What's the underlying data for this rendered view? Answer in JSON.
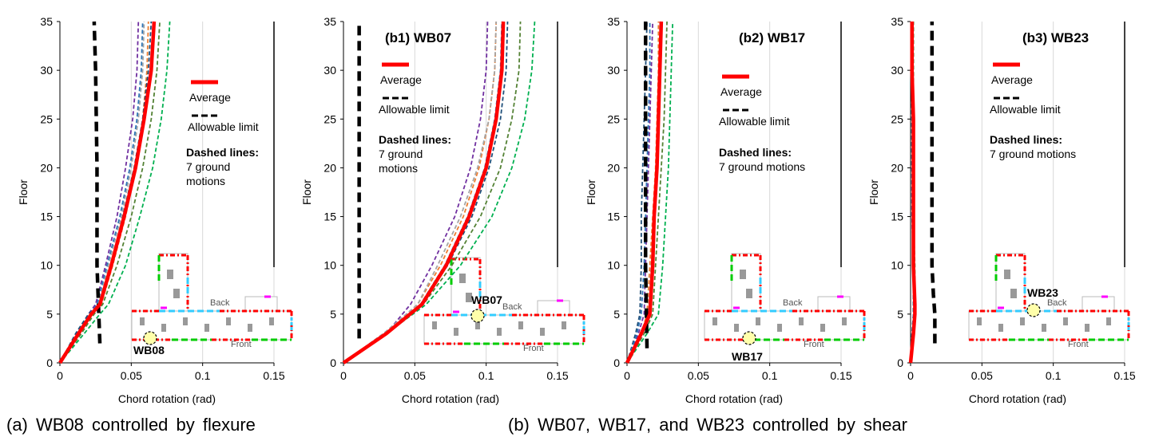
{
  "figure": {
    "caption_a": "(a)  WB08  controlled  by  flexure",
    "caption_b": "(b)  WB07,  WB17,  and  WB23  controlled  by  shear",
    "colors": {
      "average": "#ff0000",
      "limit": "#000000",
      "gm": [
        "#7030a0",
        "#ed7d31",
        "#1f4e79",
        "#548235",
        "#00b050",
        "#a5a5a5",
        "#2e75b6"
      ],
      "grid": "#d9d9d9"
    }
  },
  "chart_data": [
    {
      "type": "line",
      "panel_title": "",
      "wall_label": "WB08",
      "xlabel": "Chord rotation (rad)",
      "ylabel": "Floor",
      "xlim": [
        0,
        0.15
      ],
      "ylim": [
        0,
        35
      ],
      "x_ticks": [
        "0",
        "0.05",
        "0.1",
        "0.15"
      ],
      "y_ticks": [
        "0",
        "5",
        "10",
        "15",
        "20",
        "25",
        "30",
        "35"
      ],
      "grid": "vertical",
      "legend": {
        "average": "Average",
        "limit": "Allowable limit",
        "note_title": "Dashed lines:",
        "note_body": [
          "7 ground",
          "motions"
        ]
      },
      "floors": [
        0,
        3,
        5,
        6,
        10,
        15,
        20,
        25,
        30,
        35
      ],
      "average": [
        0,
        0.013,
        0.022,
        0.028,
        0.036,
        0.045,
        0.053,
        0.059,
        0.064,
        0.066
      ],
      "allowable_limit": [
        [
          0.028,
          2
        ],
        [
          0.026,
          10
        ],
        [
          0.026,
          20
        ],
        [
          0.025,
          30
        ],
        [
          0.024,
          35
        ]
      ],
      "series": [
        {
          "values": [
            0,
            0.012,
            0.02,
            0.025,
            0.032,
            0.04,
            0.046,
            0.051,
            0.054,
            0.055
          ]
        },
        {
          "values": [
            0,
            0.014,
            0.023,
            0.029,
            0.037,
            0.046,
            0.053,
            0.058,
            0.061,
            0.062
          ]
        },
        {
          "values": [
            0,
            0.011,
            0.02,
            0.027,
            0.036,
            0.044,
            0.052,
            0.058,
            0.062,
            0.064
          ]
        },
        {
          "values": [
            0,
            0.015,
            0.024,
            0.03,
            0.04,
            0.05,
            0.058,
            0.064,
            0.068,
            0.07
          ]
        },
        {
          "values": [
            0,
            0.017,
            0.028,
            0.034,
            0.046,
            0.056,
            0.065,
            0.071,
            0.075,
            0.077
          ]
        },
        {
          "values": [
            0,
            0.013,
            0.021,
            0.027,
            0.034,
            0.043,
            0.05,
            0.055,
            0.058,
            0.059
          ]
        },
        {
          "values": [
            0,
            0.012,
            0.021,
            0.026,
            0.033,
            0.042,
            0.049,
            0.054,
            0.057,
            0.058
          ]
        }
      ]
    },
    {
      "type": "line",
      "panel_title": "(b1) WB07",
      "wall_label": "WB07",
      "xlabel": "Chord rotation (rad)",
      "ylabel": "Floor",
      "xlim": [
        0,
        0.15
      ],
      "ylim": [
        0,
        35
      ],
      "x_ticks": [
        "0",
        "0.05",
        "0.1",
        "0.15"
      ],
      "y_ticks": [
        "0",
        "5",
        "10",
        "15",
        "20",
        "25",
        "30",
        "35"
      ],
      "grid": "vertical",
      "legend": {
        "average": "Average",
        "limit": "Allowable limit",
        "note_title": "Dashed lines:",
        "note_body": [
          "7 ground",
          "motions"
        ]
      },
      "floors": [
        0,
        3,
        6,
        10,
        15,
        20,
        25,
        30,
        35
      ],
      "average": [
        0,
        0.03,
        0.055,
        0.072,
        0.088,
        0.1,
        0.107,
        0.111,
        0.112
      ],
      "allowable_limit": [
        [
          0.011,
          2.5
        ],
        [
          0.011,
          10
        ],
        [
          0.011,
          20
        ],
        [
          0.011,
          35
        ]
      ],
      "series": [
        {
          "values": [
            0,
            0.03,
            0.047,
            0.062,
            0.078,
            0.089,
            0.096,
            0.1,
            0.101
          ]
        },
        {
          "values": [
            0,
            0.029,
            0.052,
            0.068,
            0.084,
            0.095,
            0.102,
            0.106,
            0.107
          ]
        },
        {
          "values": [
            0,
            0.028,
            0.055,
            0.073,
            0.09,
            0.102,
            0.11,
            0.114,
            0.115
          ]
        },
        {
          "values": [
            0,
            0.029,
            0.056,
            0.076,
            0.096,
            0.11,
            0.118,
            0.123,
            0.124
          ]
        },
        {
          "values": [
            0,
            0.03,
            0.058,
            0.082,
            0.104,
            0.118,
            0.127,
            0.132,
            0.134
          ]
        },
        {
          "values": [
            0,
            0.028,
            0.052,
            0.066,
            0.082,
            0.094,
            0.102,
            0.106,
            0.107
          ]
        },
        {
          "values": [
            0,
            0.03,
            0.054,
            0.071,
            0.087,
            0.099,
            0.106,
            0.11,
            0.111
          ]
        }
      ]
    },
    {
      "type": "line",
      "panel_title": "(b2) WB17",
      "wall_label": "WB17",
      "xlabel": "Chord rotation (rad)",
      "ylabel": "Floor",
      "xlim": [
        0,
        0.15
      ],
      "ylim": [
        0,
        35
      ],
      "x_ticks": [
        "0",
        "0.05",
        "0.1",
        "0.15"
      ],
      "y_ticks": [
        "0",
        "5",
        "10",
        "15",
        "20",
        "25",
        "30",
        "35"
      ],
      "grid": "vertical",
      "legend": {
        "average": "Average",
        "limit": "Allowable limit",
        "note_title": "Dashed lines:",
        "note_body": [
          "7 ground motions"
        ]
      },
      "floors": [
        0,
        3,
        5,
        10,
        15,
        20,
        25,
        30,
        35
      ],
      "average": [
        0,
        0.01,
        0.016,
        0.018,
        0.019,
        0.021,
        0.022,
        0.023,
        0.024
      ],
      "allowable_limit": [
        [
          0.014,
          1.5
        ],
        [
          0.013,
          10
        ],
        [
          0.013,
          20
        ],
        [
          0.013,
          30
        ],
        [
          0.013,
          35
        ]
      ],
      "series": [
        {
          "values": [
            0,
            0.008,
            0.012,
            0.013,
            0.014,
            0.015,
            0.016,
            0.017,
            0.018
          ]
        },
        {
          "values": [
            0,
            0.01,
            0.014,
            0.016,
            0.018,
            0.02,
            0.021,
            0.022,
            0.022
          ]
        },
        {
          "values": [
            0,
            0.006,
            0.009,
            0.01,
            0.01,
            0.011,
            0.012,
            0.013,
            0.014
          ]
        },
        {
          "values": [
            0,
            0.012,
            0.018,
            0.02,
            0.022,
            0.024,
            0.026,
            0.027,
            0.028
          ]
        },
        {
          "values": [
            0,
            0.014,
            0.022,
            0.025,
            0.027,
            0.029,
            0.03,
            0.031,
            0.032
          ]
        },
        {
          "values": [
            0,
            0.011,
            0.015,
            0.017,
            0.019,
            0.021,
            0.022,
            0.023,
            0.023
          ]
        },
        {
          "values": [
            0,
            0.007,
            0.01,
            0.012,
            0.013,
            0.014,
            0.015,
            0.016,
            0.016
          ]
        }
      ]
    },
    {
      "type": "line",
      "panel_title": "(b3) WB23",
      "wall_label": "WB23",
      "xlabel": "Chord rotation (rad)",
      "ylabel": "Floor",
      "xlim": [
        0,
        0.15
      ],
      "ylim": [
        0,
        35
      ],
      "x_ticks": [
        "0",
        "0.05",
        "0.1",
        "0.15"
      ],
      "y_ticks": [
        "0",
        "5",
        "10",
        "15",
        "20",
        "25",
        "30",
        "35"
      ],
      "grid": "vertical",
      "legend": {
        "average": "Average",
        "limit": "Allowable limit",
        "note_title": "Dashed lines:",
        "note_body": [
          "7 ground motions"
        ]
      },
      "floors": [
        0,
        3,
        5,
        6,
        10,
        15,
        20,
        25,
        30,
        35
      ],
      "average": [
        0,
        0.002,
        0.003,
        0.003,
        0.002,
        0.002,
        0.002,
        0.002,
        0.001,
        0.001
      ],
      "allowable_limit": [
        [
          0.017,
          2
        ],
        [
          0.017,
          5
        ],
        [
          0.016,
          7
        ],
        [
          0.015,
          10
        ],
        [
          0.015,
          20
        ],
        [
          0.015,
          35
        ]
      ],
      "series": [
        {
          "values": [
            0,
            0.001,
            0.002,
            0.002,
            0.002,
            0.001,
            0.001,
            0.001,
            0.001,
            0.001
          ]
        },
        {
          "values": [
            0,
            0.002,
            0.003,
            0.003,
            0.002,
            0.002,
            0.002,
            0.001,
            0.001,
            0.001
          ]
        },
        {
          "values": [
            0,
            0.002,
            0.002,
            0.002,
            0.002,
            0.002,
            0.001,
            0.001,
            0.001,
            0.001
          ]
        },
        {
          "values": [
            0,
            0.002,
            0.003,
            0.003,
            0.003,
            0.002,
            0.002,
            0.002,
            0.002,
            0.002
          ]
        },
        {
          "values": [
            0,
            0.001,
            0.002,
            0.002,
            0.002,
            0.002,
            0.001,
            0.001,
            0.001,
            0.001
          ]
        },
        {
          "values": [
            0,
            0.002,
            0.002,
            0.003,
            0.002,
            0.002,
            0.002,
            0.001,
            0.001,
            0.001
          ]
        },
        {
          "values": [
            0,
            0.001,
            0.002,
            0.002,
            0.002,
            0.001,
            0.001,
            0.001,
            0.001,
            0.001
          ]
        }
      ]
    }
  ],
  "plan": {
    "back_label": "Back",
    "front_label": "Front"
  }
}
